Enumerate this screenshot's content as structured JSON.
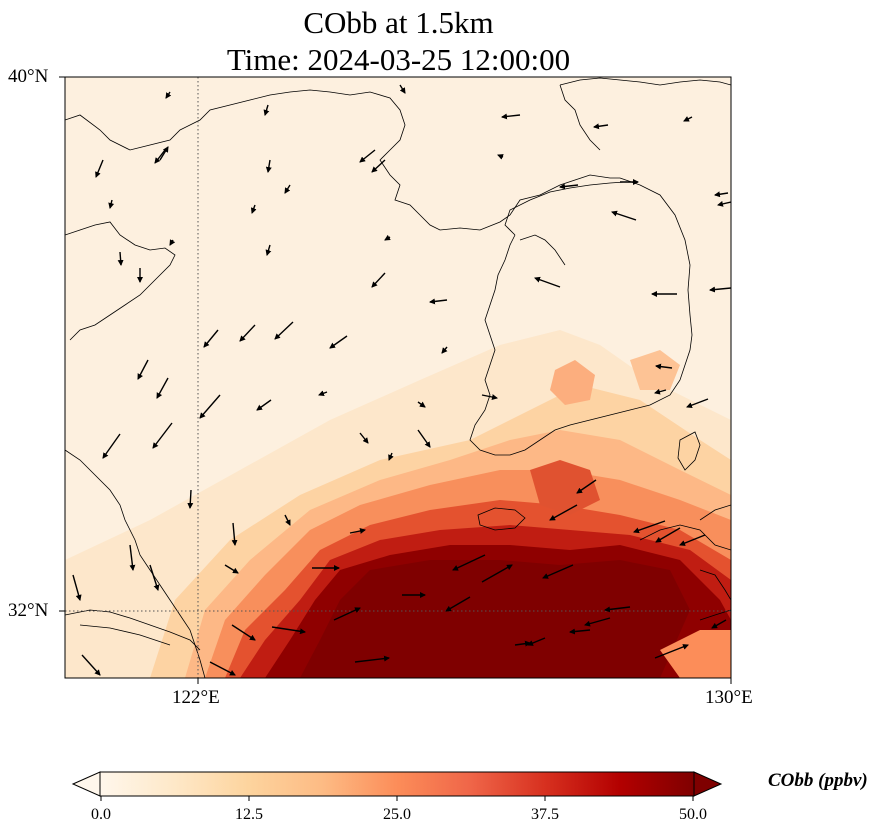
{
  "title": {
    "line1": "CObb at 1.5km",
    "line2": "Time: 2024-03-25 12:00:00"
  },
  "map": {
    "field": "CObb",
    "altitude": "1.5km",
    "lon_range": [
      120,
      130
    ],
    "lat_range": [
      31,
      40
    ],
    "lat_labels": [
      "40°N",
      "32°N"
    ],
    "lon_labels": [
      "122°E",
      "130°E"
    ],
    "gridlines": {
      "lon": [
        122
      ],
      "lat": [
        32
      ],
      "style": "dotted"
    },
    "coastlines": true,
    "wind_vectors": true,
    "high_concentration_region": "East China Sea south of Korea and near Jeju, extending toward Kyushu"
  },
  "colorbar": {
    "label": "CObb (ppbv)",
    "min": 0.0,
    "max": 50.0,
    "ticks": [
      "0.0",
      "12.5",
      "25.0",
      "37.5",
      "50.0"
    ],
    "colormap": "OrRd",
    "extend": "both",
    "colors": [
      "#fff7ec",
      "#fee8c8",
      "#fdd49e",
      "#fdbb84",
      "#fc8d59",
      "#ef6548",
      "#d7301f",
      "#b30000",
      "#7f0000"
    ]
  }
}
